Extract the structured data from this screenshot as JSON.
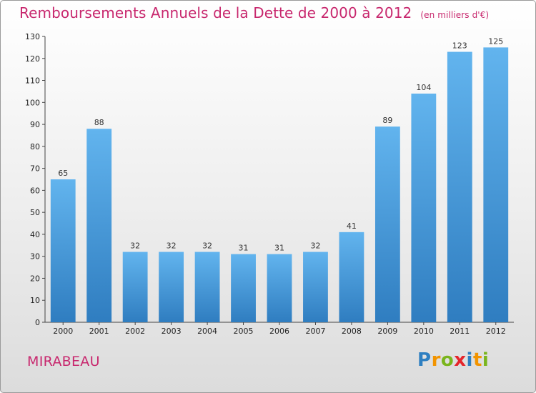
{
  "chart_data": {
    "type": "bar",
    "title": "Remboursements Annuels de la Dette de 2000 à 2012",
    "subtitle": "(en milliers d'€)",
    "categories": [
      "2000",
      "2001",
      "2002",
      "2003",
      "2004",
      "2005",
      "2006",
      "2007",
      "2008",
      "2009",
      "2010",
      "2011",
      "2012"
    ],
    "values": [
      65,
      88,
      32,
      32,
      32,
      31,
      31,
      32,
      41,
      89,
      104,
      123,
      125
    ],
    "ylim": [
      0,
      130
    ],
    "yticks": [
      0,
      10,
      20,
      30,
      40,
      50,
      60,
      70,
      80,
      90,
      100,
      110,
      120,
      130
    ],
    "grid": false,
    "bar_color": "#4a9ee0"
  },
  "commune": "MIRABEAU",
  "logo": {
    "letters": [
      "P",
      "r",
      "o",
      "x",
      "i",
      "t",
      "i"
    ],
    "colors": [
      "#2e7fc1",
      "#f29400",
      "#7ab51d",
      "#e5262b",
      "#2e7fc1",
      "#f29400",
      "#7ab51d"
    ]
  }
}
